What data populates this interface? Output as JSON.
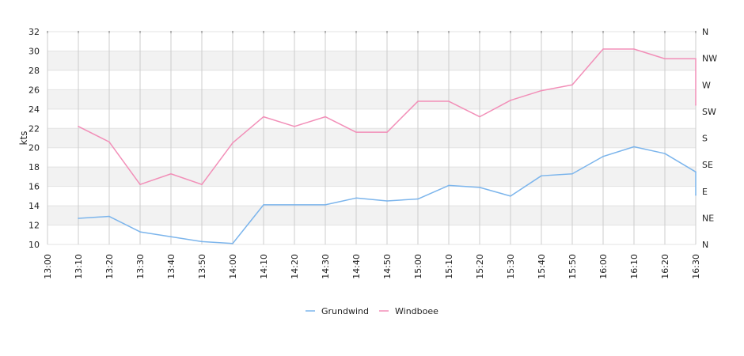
{
  "chart_data": {
    "type": "line",
    "ylabel": "kts",
    "ylim": [
      10,
      32
    ],
    "y_ticks": [
      10,
      12,
      14,
      16,
      18,
      20,
      22,
      24,
      26,
      28,
      30,
      32
    ],
    "y2_ticks": [
      "N",
      "NE",
      "E",
      "SE",
      "S",
      "SW",
      "W",
      "NW",
      "N"
    ],
    "x_ticks": [
      "13:00",
      "13:10",
      "13:20",
      "13:30",
      "13:40",
      "13:50",
      "14:00",
      "14:10",
      "14:20",
      "14:30",
      "14:40",
      "14:50",
      "15:00",
      "15:10",
      "15:20",
      "15:30",
      "15:40",
      "15:50",
      "16:00",
      "16:10",
      "16:20",
      "16:30"
    ],
    "legend_position": "bottom-center",
    "grid": true,
    "band_color": "#f2f2f2",
    "series": [
      {
        "name": "Grundwind",
        "color": "#7cb5ec",
        "points": [
          [
            "13:10",
            12.7
          ],
          [
            "13:20",
            12.9
          ],
          [
            "13:30",
            11.3
          ],
          [
            "13:40",
            10.8
          ],
          [
            "13:50",
            10.3
          ],
          [
            "14:00",
            10.1
          ],
          [
            "14:10",
            14.1
          ],
          [
            "14:20",
            14.1
          ],
          [
            "14:30",
            14.1
          ],
          [
            "14:40",
            14.8
          ],
          [
            "14:50",
            14.5
          ],
          [
            "15:00",
            14.7
          ],
          [
            "15:10",
            16.1
          ],
          [
            "15:20",
            15.9
          ],
          [
            "15:30",
            15.0
          ],
          [
            "15:40",
            17.1
          ],
          [
            "15:50",
            17.3
          ],
          [
            "16:00",
            19.1
          ],
          [
            "16:10",
            20.1
          ],
          [
            "16:20",
            19.4
          ],
          [
            "16:30",
            17.5
          ],
          [
            "16:30",
            15.1
          ]
        ]
      },
      {
        "name": "Windboee",
        "color": "#f28fb8",
        "points": [
          [
            "13:10",
            22.2
          ],
          [
            "13:20",
            20.6
          ],
          [
            "13:30",
            16.2
          ],
          [
            "13:40",
            17.3
          ],
          [
            "13:50",
            16.2
          ],
          [
            "14:00",
            20.5
          ],
          [
            "14:10",
            23.2
          ],
          [
            "14:20",
            22.2
          ],
          [
            "14:30",
            23.2
          ],
          [
            "14:40",
            21.6
          ],
          [
            "14:50",
            21.6
          ],
          [
            "15:00",
            24.8
          ],
          [
            "15:10",
            24.8
          ],
          [
            "15:20",
            23.2
          ],
          [
            "15:30",
            24.9
          ],
          [
            "15:40",
            25.9
          ],
          [
            "15:50",
            26.5
          ],
          [
            "16:00",
            30.2
          ],
          [
            "16:10",
            30.2
          ],
          [
            "16:20",
            29.2
          ],
          [
            "16:30",
            29.2
          ],
          [
            "16:30",
            24.4
          ]
        ]
      }
    ]
  }
}
